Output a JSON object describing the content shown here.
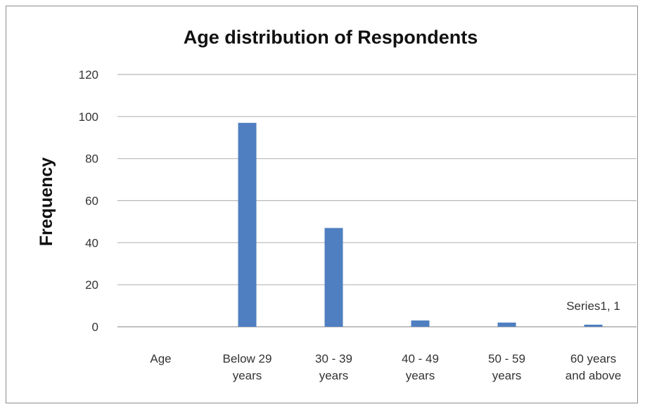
{
  "chart_data": {
    "type": "bar",
    "title": "Age distribution of Respondents",
    "xlabel": "",
    "ylabel": "Frequency",
    "ylim": [
      0,
      120
    ],
    "yticks": [
      "0",
      "20",
      "40",
      "60",
      "80",
      "100",
      "120"
    ],
    "grid": true,
    "categories": [
      [
        "Age"
      ],
      [
        "Below 29",
        "years"
      ],
      [
        "30 - 39",
        "years"
      ],
      [
        "40 - 49",
        "years"
      ],
      [
        "50 - 59",
        "years"
      ],
      [
        "60 years",
        "and above"
      ]
    ],
    "series": [
      {
        "name": "Series1",
        "values": [
          0,
          97,
          47,
          3,
          2,
          1
        ],
        "color": "#4f7fc0"
      }
    ],
    "data_label": "Series1, 1"
  }
}
